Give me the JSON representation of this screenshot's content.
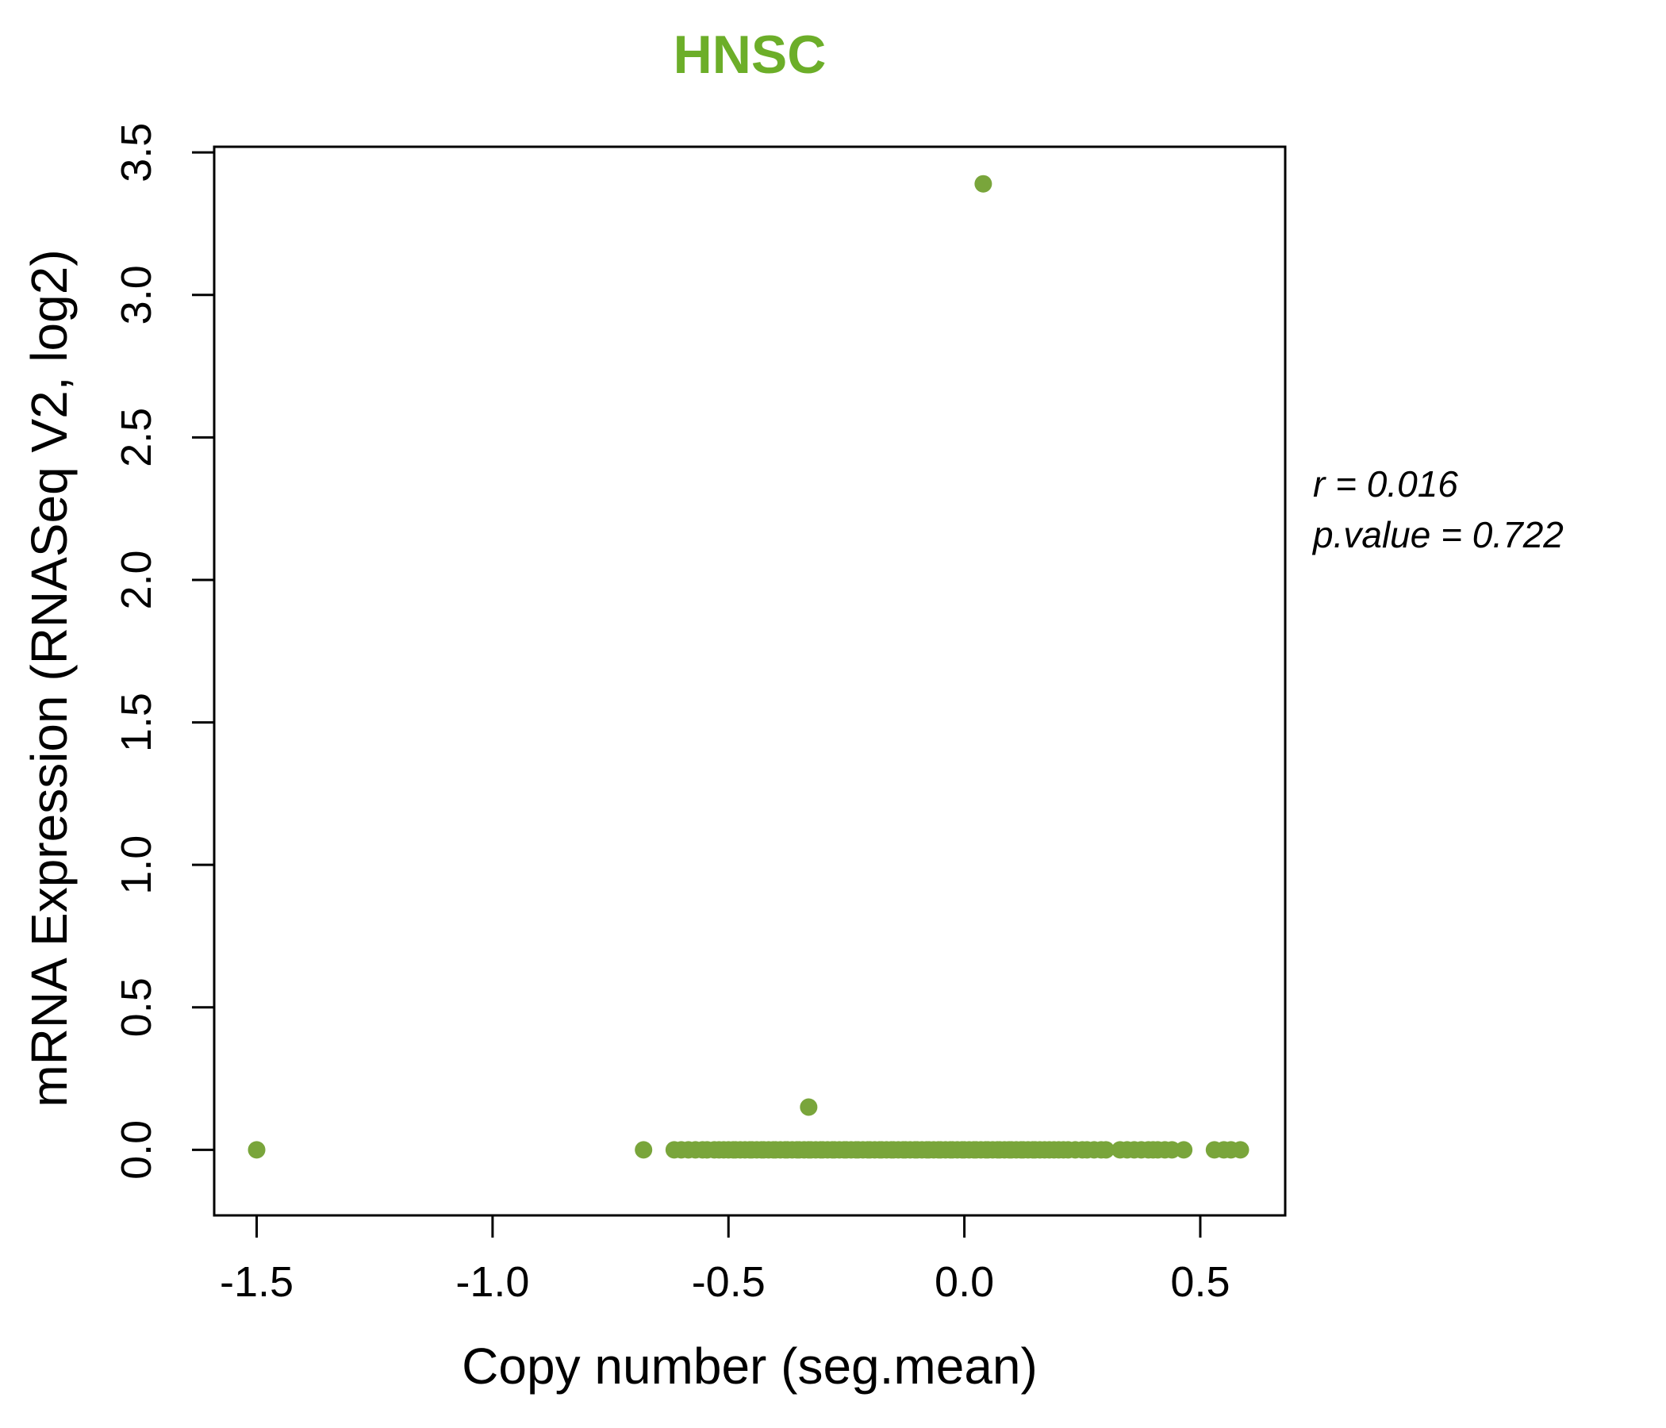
{
  "chart_data": {
    "type": "scatter",
    "title": "HNSC",
    "title_color": "#6CAE29",
    "point_color": "#79A53B",
    "frame_color": "#000000",
    "xlabel": "Copy number (seg.mean)",
    "ylabel": "mRNA Expression (RNASeq V2, log2)",
    "xlim": [
      -1.59,
      0.68
    ],
    "ylim": [
      -0.23,
      3.52
    ],
    "xtick_values": [
      -1.5,
      -1.0,
      -0.5,
      0.0,
      0.5
    ],
    "xtick_labels": [
      "-1.5",
      "-1.0",
      "-0.5",
      "0.0",
      "0.5"
    ],
    "ytick_values": [
      0.0,
      0.5,
      1.0,
      1.5,
      2.0,
      2.5,
      3.0,
      3.5
    ],
    "ytick_labels": [
      "0.0",
      "0.5",
      "1.0",
      "1.5",
      "2.0",
      "2.5",
      "3.0",
      "3.5"
    ],
    "annotations": [
      "r = 0.016",
      "p.value = 0.722"
    ],
    "legend": null,
    "grid": false,
    "points": [
      [
        -1.5,
        0
      ],
      [
        -0.68,
        0
      ],
      [
        -0.615,
        0
      ],
      [
        -0.6,
        0
      ],
      [
        -0.585,
        0
      ],
      [
        -0.57,
        0
      ],
      [
        -0.555,
        0
      ],
      [
        -0.545,
        0
      ],
      [
        -0.53,
        0
      ],
      [
        -0.52,
        0
      ],
      [
        -0.51,
        0
      ],
      [
        -0.5,
        0
      ],
      [
        -0.49,
        0
      ],
      [
        -0.485,
        0
      ],
      [
        -0.475,
        0
      ],
      [
        -0.465,
        0
      ],
      [
        -0.455,
        0
      ],
      [
        -0.45,
        0
      ],
      [
        -0.44,
        0
      ],
      [
        -0.43,
        0
      ],
      [
        -0.425,
        0
      ],
      [
        -0.415,
        0
      ],
      [
        -0.405,
        0
      ],
      [
        -0.4,
        0
      ],
      [
        -0.39,
        0
      ],
      [
        -0.38,
        0
      ],
      [
        -0.375,
        0
      ],
      [
        -0.365,
        0
      ],
      [
        -0.355,
        0
      ],
      [
        -0.35,
        0
      ],
      [
        -0.34,
        0
      ],
      [
        -0.33,
        0
      ],
      [
        -0.325,
        0
      ],
      [
        -0.315,
        0
      ],
      [
        -0.305,
        0
      ],
      [
        -0.3,
        0
      ],
      [
        -0.29,
        0
      ],
      [
        -0.28,
        0
      ],
      [
        -0.275,
        0
      ],
      [
        -0.265,
        0
      ],
      [
        -0.255,
        0
      ],
      [
        -0.25,
        0
      ],
      [
        -0.24,
        0
      ],
      [
        -0.23,
        0
      ],
      [
        -0.225,
        0
      ],
      [
        -0.215,
        0
      ],
      [
        -0.205,
        0
      ],
      [
        -0.2,
        0
      ],
      [
        -0.19,
        0
      ],
      [
        -0.18,
        0
      ],
      [
        -0.175,
        0
      ],
      [
        -0.165,
        0
      ],
      [
        -0.155,
        0
      ],
      [
        -0.15,
        0
      ],
      [
        -0.14,
        0
      ],
      [
        -0.13,
        0
      ],
      [
        -0.125,
        0
      ],
      [
        -0.115,
        0
      ],
      [
        -0.105,
        0
      ],
      [
        -0.1,
        0
      ],
      [
        -0.09,
        0
      ],
      [
        -0.08,
        0
      ],
      [
        -0.075,
        0
      ],
      [
        -0.065,
        0
      ],
      [
        -0.055,
        0
      ],
      [
        -0.05,
        0
      ],
      [
        -0.04,
        0
      ],
      [
        -0.03,
        0
      ],
      [
        -0.025,
        0
      ],
      [
        -0.015,
        0
      ],
      [
        -0.005,
        0
      ],
      [
        0,
        0
      ],
      [
        0.01,
        0
      ],
      [
        0.02,
        0
      ],
      [
        0.025,
        0
      ],
      [
        0.035,
        0
      ],
      [
        0.045,
        0
      ],
      [
        0.05,
        0
      ],
      [
        0.06,
        0
      ],
      [
        0.07,
        0
      ],
      [
        0.075,
        0
      ],
      [
        0.085,
        0
      ],
      [
        0.095,
        0
      ],
      [
        0.1,
        0
      ],
      [
        0.11,
        0
      ],
      [
        0.12,
        0
      ],
      [
        0.125,
        0
      ],
      [
        0.135,
        0
      ],
      [
        0.145,
        0
      ],
      [
        0.15,
        0
      ],
      [
        0.16,
        0
      ],
      [
        0.17,
        0
      ],
      [
        0.18,
        0
      ],
      [
        0.19,
        0
      ],
      [
        0.2,
        0
      ],
      [
        0.21,
        0
      ],
      [
        0.22,
        0
      ],
      [
        0.235,
        0
      ],
      [
        0.25,
        0
      ],
      [
        0.26,
        0
      ],
      [
        0.275,
        0
      ],
      [
        0.29,
        0
      ],
      [
        0.3,
        0
      ],
      [
        0.33,
        0
      ],
      [
        0.345,
        0
      ],
      [
        0.36,
        0
      ],
      [
        0.375,
        0
      ],
      [
        0.39,
        0
      ],
      [
        0.4,
        0
      ],
      [
        0.41,
        0
      ],
      [
        0.425,
        0
      ],
      [
        0.44,
        0
      ],
      [
        0.465,
        0
      ],
      [
        0.53,
        0
      ],
      [
        0.55,
        0
      ],
      [
        0.565,
        0
      ],
      [
        0.585,
        0
      ],
      [
        -0.33,
        0.15
      ],
      [
        0.04,
        3.39
      ]
    ]
  }
}
